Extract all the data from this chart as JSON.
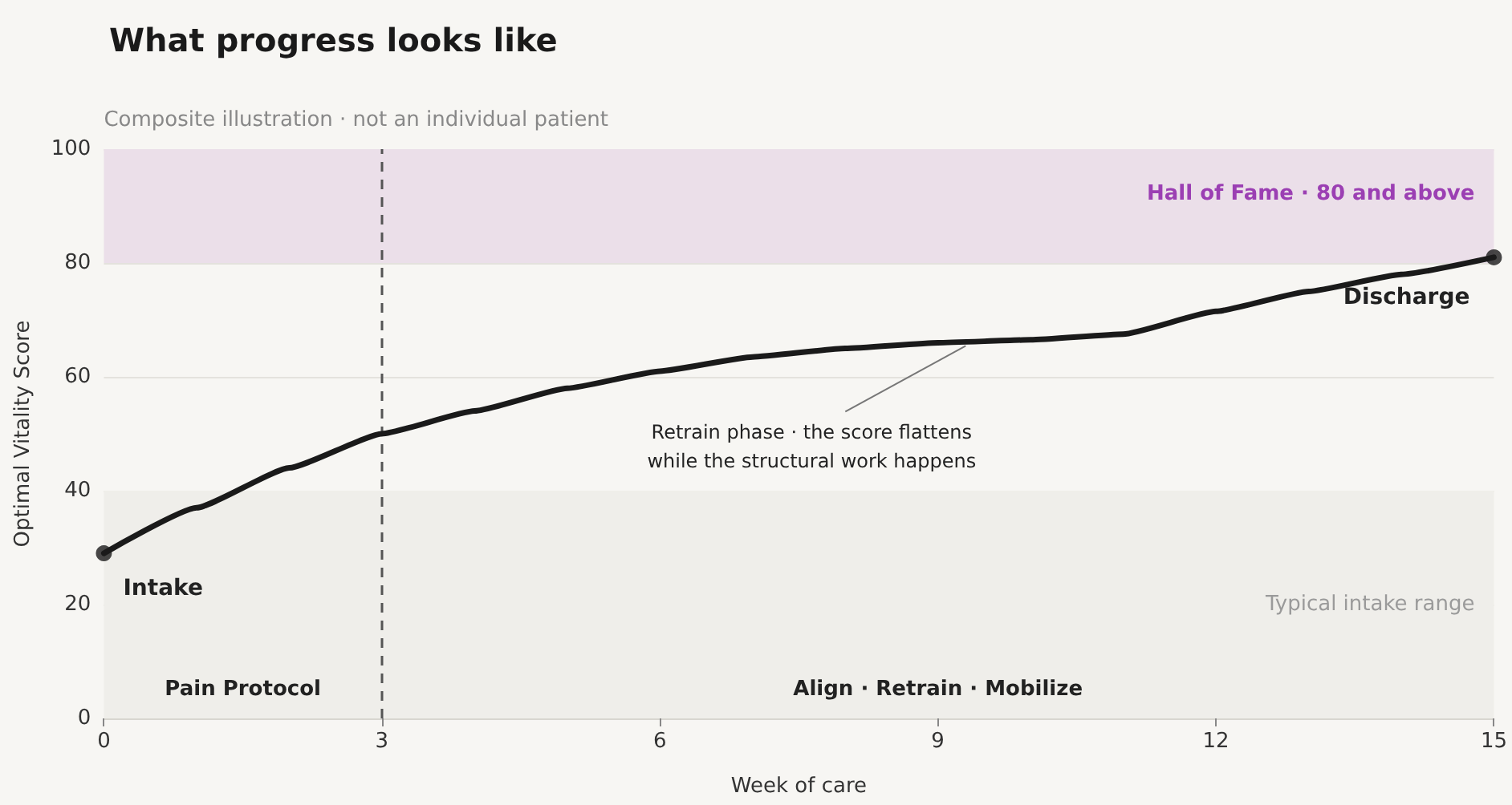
{
  "chart_data": {
    "type": "line",
    "title": "What progress looks like",
    "xlabel": "Week of care",
    "ylabel": "Optimal Vitality Score",
    "x": [
      0,
      1,
      2,
      3,
      4,
      5,
      6,
      7,
      8,
      9,
      10,
      11,
      12,
      13,
      14,
      15
    ],
    "series": [
      {
        "color": "#1a1a1a",
        "marker": "none",
        "values": [
          29,
          37,
          44,
          50,
          54,
          58,
          61,
          63.5,
          65,
          66,
          66.5,
          67.5,
          71.5,
          75,
          78,
          81
        ]
      },
      {
        "type": "scatter",
        "color": "#1a1a1a",
        "marker": "circle",
        "x": [
          0,
          15
        ],
        "values": [
          29,
          81
        ]
      }
    ],
    "xlim": [
      0,
      15
    ],
    "xticks": [
      0,
      3,
      6,
      9,
      12,
      15
    ],
    "ylim": [
      0,
      100
    ],
    "yticks": [
      0,
      20,
      40,
      60,
      80,
      100
    ],
    "grid": "y",
    "bands": [
      {
        "axis": "y",
        "from": 80,
        "to": 100,
        "label": "Hall of Fame · 80 and above",
        "color": "#ebdfe9"
      },
      {
        "axis": "y",
        "from": 0,
        "to": 40,
        "label": "Typical intake range",
        "color": "#efeeea"
      }
    ],
    "ref_lines": [
      {
        "axis": "x",
        "value": 3,
        "label": null,
        "line_style": "dashed",
        "color": "#555555"
      }
    ],
    "annotations": [
      "Composite illustration · not an individual patient",
      "Pain Protocol",
      "Align · Retrain · Mobilize",
      {
        "text": "Intake",
        "x": 0,
        "y": 29
      },
      {
        "text": "Discharge",
        "x": 15,
        "y": 81
      },
      {
        "text": "Retrain phase · the score flattens\nwhile the structural work happens",
        "x": 9.3,
        "y": 66
      }
    ]
  }
}
